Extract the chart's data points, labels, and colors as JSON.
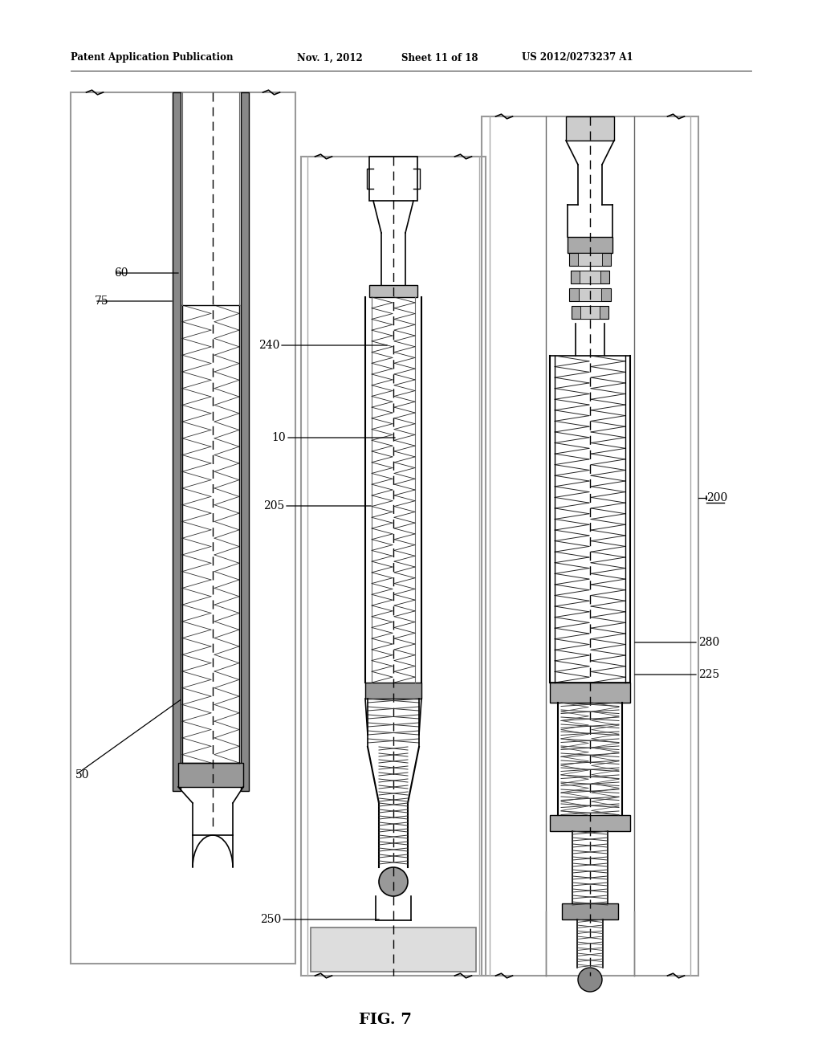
{
  "title_left": "Patent Application Publication",
  "title_date": "Nov. 1, 2012",
  "title_sheet": "Sheet 11 of 18",
  "title_patent": "US 2012/0273237 A1",
  "fig_label": "FIG. 7",
  "bg_color": "#ffffff"
}
